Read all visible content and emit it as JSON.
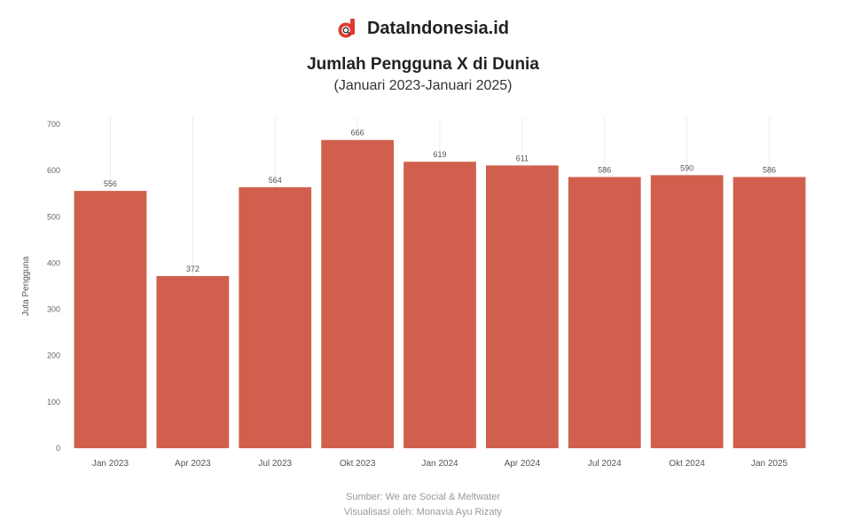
{
  "brand": {
    "name": "DataIndonesia.id",
    "logo_icon": "dataindonesia-logo-icon",
    "logo_color": "#e03a2f"
  },
  "header": {
    "title": "Jumlah Pengguna X di Dunia",
    "subtitle": "(Januari 2023-Januari 2025)"
  },
  "chart_data": {
    "type": "bar",
    "title": "Jumlah Pengguna X di Dunia",
    "subtitle": "(Januari 2023-Januari 2025)",
    "categories": [
      "Jan 2023",
      "Apr 2023",
      "Jul 2023",
      "Okt 2023",
      "Jan 2024",
      "Apr 2024",
      "Jul 2024",
      "Okt 2024",
      "Jan 2025"
    ],
    "values": [
      556,
      372,
      564,
      666,
      619,
      611,
      586,
      590,
      586
    ],
    "ylabel": "Juta Pengguna",
    "xlabel": "",
    "ylim": [
      0,
      700
    ],
    "yticks": [
      0,
      100,
      200,
      300,
      400,
      500,
      600,
      700
    ],
    "ytick_labels": [
      "0",
      "100",
      "200",
      "300",
      "400",
      "500",
      "600",
      "700"
    ],
    "bar_color": "#d0604d",
    "grid": true,
    "legend": "none"
  },
  "footer": {
    "source": "Sumber: We are Social & Meltwater",
    "visualization": "Visualisasi oleh: Monavia Ayu Rizaty"
  }
}
